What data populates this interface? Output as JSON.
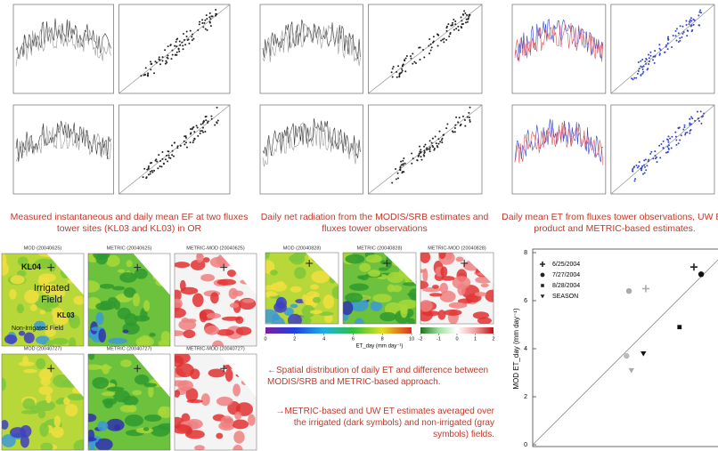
{
  "figures": [
    {
      "caption": "Measured instantaneous and daily mean EF at two fluxes tower sites (KL03 and KL03) in OR"
    },
    {
      "caption": "Daily net radiation from the MODIS/SRB estimates and fluxes tower observations"
    },
    {
      "caption": "Daily mean ET from fluxes tower observations, UW ET product and METRIC-based estimates."
    }
  ],
  "maps_left": {
    "titles": [
      "MOD (20040625)",
      "METRIC (20040625)",
      "METRIC-MOD (20040625)",
      "MOD (20040727)",
      "METRIC (20040727)",
      "METRIC-MOD (20040727)"
    ],
    "labels": {
      "kl04": "KL04",
      "irrigated": "Irrigated Field",
      "kl03": "KL03",
      "non_irrigated": "Non-Irrigated Field"
    }
  },
  "maps_mid": {
    "titles": [
      "MOD (20040828)",
      "METRIC (20040828)",
      "METRIC-MOD (20040828)"
    ],
    "colorbar_ticks": [
      0,
      2,
      4,
      6,
      8,
      10
    ],
    "diff_ticks": [
      -2,
      -1,
      0,
      1,
      2
    ],
    "colorbar_label": "ET_day (mm day⁻¹)"
  },
  "notes": [
    "←Spatial distribution of daily ET and difference between MODIS/SRB and METRIC-based approach.",
    "→METRIC-based and UW ET estimates averaged over the irrigated (dark symbols) and non-irrigated (gray symbols) fields."
  ],
  "chart_data": {
    "type": "scatter",
    "y_label": "MOD ET_day (mm day⁻¹)",
    "xlim": [
      0,
      7.7
    ],
    "ylim": [
      0,
      8
    ],
    "yticks": [
      0,
      2,
      4,
      6,
      8
    ],
    "legend": "upper left",
    "series": [
      {
        "name": "6/25/2004",
        "marker": "plus",
        "x": [
          6.7,
          4.7
        ],
        "values": [
          7.4,
          6.5
        ],
        "colors": [
          "#222222",
          "#aaaaaa"
        ]
      },
      {
        "name": "7/27/2004",
        "marker": "circle",
        "x": [
          7.0,
          4.0,
          3.9
        ],
        "values": [
          7.1,
          6.4,
          3.7
        ],
        "colors": [
          "#111111",
          "#aaaaaa",
          "#bbbbbb"
        ]
      },
      {
        "name": "8/28/2004",
        "marker": "square",
        "x": [
          6.1
        ],
        "values": [
          4.9
        ],
        "colors": [
          "#111111"
        ]
      },
      {
        "name": "SEASON",
        "marker": "triangle",
        "x": [
          4.6,
          4.1
        ],
        "values": [
          3.8,
          3.1
        ],
        "colors": [
          "#111111",
          "#aaaaaa"
        ]
      }
    ]
  }
}
